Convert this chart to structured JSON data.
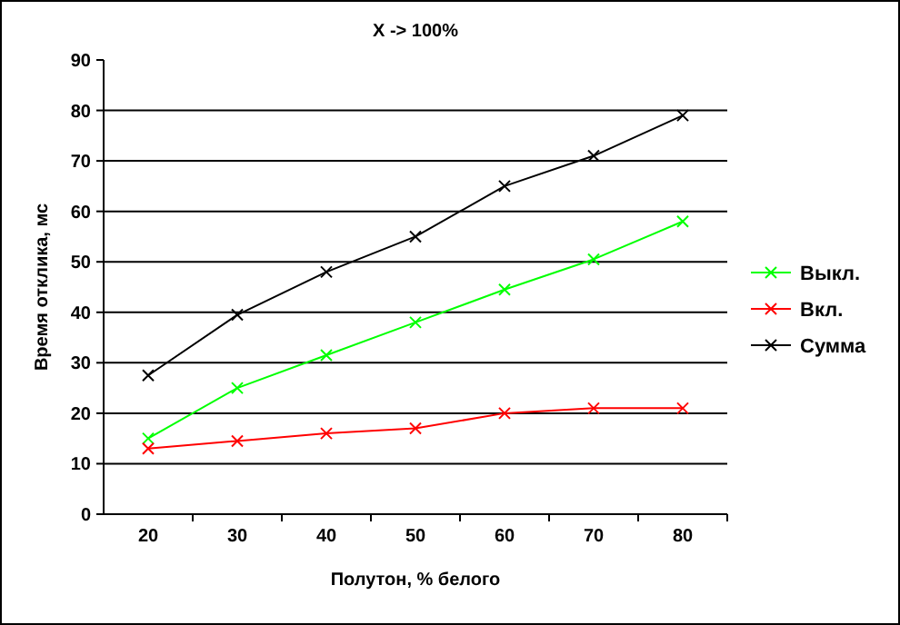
{
  "chart_data": {
    "type": "line",
    "title": "X -> 100%",
    "xlabel": "Полутон, % белого",
    "ylabel": "Время отклика, мс",
    "categories": [
      "20",
      "30",
      "40",
      "50",
      "60",
      "70",
      "80"
    ],
    "series": [
      {
        "name": "Выкл.",
        "color": "#00ff00",
        "values": [
          15,
          25,
          31.5,
          38,
          44.5,
          50.5,
          58
        ]
      },
      {
        "name": "Вкл.",
        "color": "#ff0000",
        "values": [
          13,
          14.5,
          16,
          17,
          20,
          21,
          21
        ]
      },
      {
        "name": "Сумма",
        "color": "#000000",
        "values": [
          27.5,
          39.5,
          48,
          55,
          65,
          71,
          79
        ]
      }
    ],
    "ylim": [
      0,
      90
    ],
    "yticks": [
      0,
      10,
      20,
      30,
      40,
      50,
      60,
      70,
      80,
      90
    ],
    "grid": "y",
    "legend": "right",
    "marker": "cross",
    "line_style": "solid"
  }
}
